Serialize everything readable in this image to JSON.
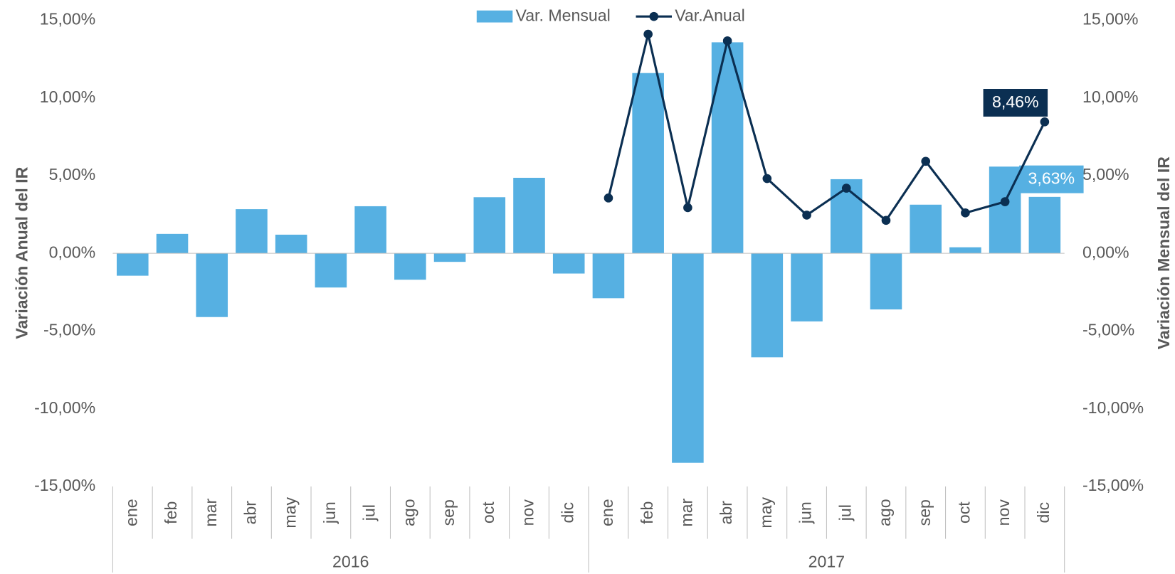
{
  "chart_data": {
    "type": "bar+line",
    "categories": [
      "ene",
      "feb",
      "mar",
      "abr",
      "may",
      "jun",
      "jul",
      "ago",
      "sep",
      "oct",
      "nov",
      "dic",
      "ene",
      "feb",
      "mar",
      "abr",
      "may",
      "jun",
      "jul",
      "ago",
      "sep",
      "oct",
      "nov",
      "dic"
    ],
    "groups": [
      "2016",
      "2017"
    ],
    "y_label": "Variación Anual del IR",
    "y2_label": "Variación Mensual del IR",
    "ylim": [
      -15,
      15
    ],
    "yticks": [
      {
        "value": 15,
        "label": "15,00%"
      },
      {
        "value": 10,
        "label": "10,00%"
      },
      {
        "value": 5,
        "label": "5,00%"
      },
      {
        "value": 0,
        "label": "0,00%"
      },
      {
        "value": -5,
        "label": "-5,00%"
      },
      {
        "value": -10,
        "label": "-10,00%"
      },
      {
        "value": -15,
        "label": "-15,00%"
      }
    ],
    "y2lim": [
      -15,
      15
    ],
    "y2ticks": [
      {
        "value": 15,
        "label": "15,00%"
      },
      {
        "value": 10,
        "label": "10,00%"
      },
      {
        "value": 5,
        "label": "5,00%"
      },
      {
        "value": 0,
        "label": "0,00%"
      },
      {
        "value": -5,
        "label": "-5,00%"
      },
      {
        "value": -10,
        "label": "-10,00%"
      },
      {
        "value": -15,
        "label": "-15,00%"
      }
    ],
    "legend": "top",
    "series": [
      {
        "name": "Var. Mensual",
        "type": "bar",
        "axis": "y2",
        "color": "#56b0e2",
        "values": [
          -1.44,
          1.25,
          -4.1,
          2.84,
          1.2,
          -2.2,
          3.03,
          -1.7,
          -0.55,
          3.61,
          4.86,
          -1.3,
          -2.89,
          11.6,
          -13.48,
          13.58,
          -6.69,
          -4.38,
          4.77,
          -3.61,
          3.13,
          0.39,
          5.58,
          3.63
        ],
        "value_labels": [
          null,
          null,
          null,
          null,
          null,
          null,
          null,
          null,
          null,
          null,
          null,
          null,
          null,
          null,
          null,
          null,
          null,
          null,
          null,
          null,
          null,
          null,
          null,
          "3,63%"
        ]
      },
      {
        "name": "Var.Anual",
        "type": "line",
        "color": "#0b2f52",
        "values": [
          null,
          null,
          null,
          null,
          null,
          null,
          null,
          null,
          null,
          null,
          null,
          null,
          3.56,
          14.1,
          2.94,
          13.67,
          4.81,
          2.46,
          4.19,
          2.12,
          5.92,
          2.6,
          3.32,
          8.46
        ],
        "value_labels": [
          null,
          null,
          null,
          null,
          null,
          null,
          null,
          null,
          null,
          null,
          null,
          null,
          null,
          null,
          null,
          null,
          null,
          null,
          null,
          null,
          null,
          null,
          null,
          "8,46%"
        ]
      }
    ]
  }
}
